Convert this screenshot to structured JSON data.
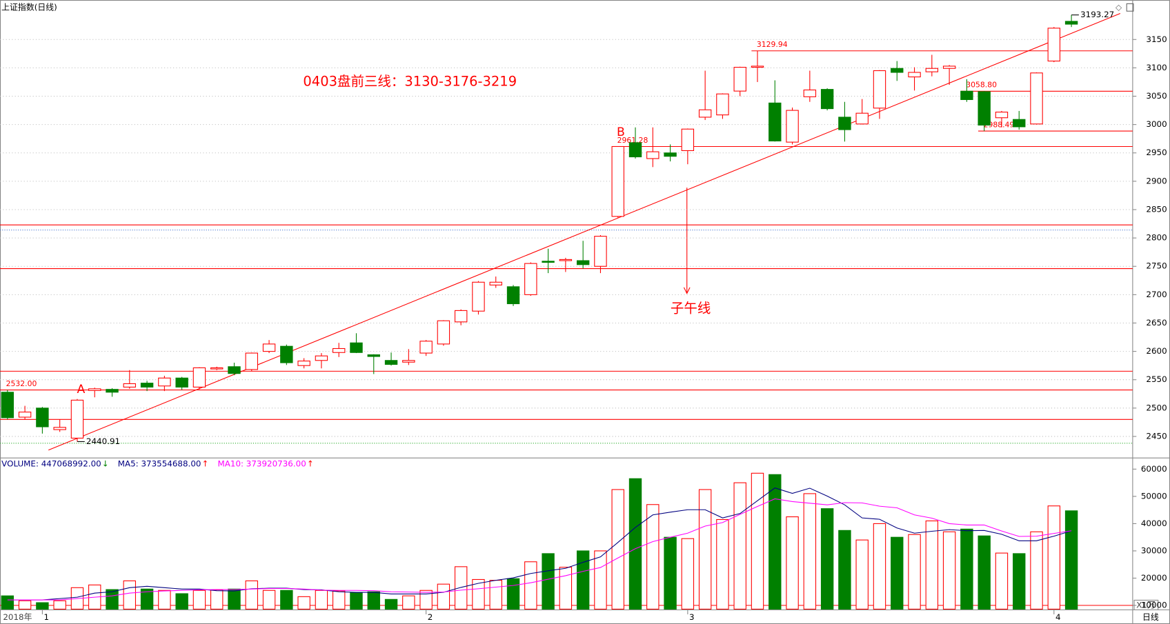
{
  "title": "上证指数(日线)",
  "chart_data": [
    {
      "type": "candlestick",
      "categories": [
        null,
        null,
        "1",
        null,
        null,
        null,
        null,
        null,
        null,
        null,
        null,
        null,
        null,
        null,
        null,
        null,
        null,
        null,
        null,
        null,
        null,
        null,
        null,
        null,
        "2",
        null,
        null,
        null,
        null,
        null,
        null,
        null,
        null,
        null,
        null,
        null,
        null,
        null,
        null,
        "3",
        null,
        null,
        null,
        null,
        null,
        null,
        null,
        null,
        null,
        null,
        null,
        null,
        null,
        null,
        null,
        null,
        null,
        null,
        null,
        null,
        "4",
        null
      ],
      "year_label": "2018年",
      "corner_label": "日线",
      "open": [
        2528,
        2484,
        2500,
        2462,
        2447,
        2531,
        2533,
        2537,
        2544,
        2539,
        2553,
        2537,
        2569,
        2573,
        2568,
        2600,
        2609,
        2575,
        2584,
        2598,
        2615,
        2594,
        2584,
        2581,
        2597,
        2613,
        2652,
        2671,
        2717,
        2714,
        2700,
        2759,
        2760,
        2760,
        2750,
        2838,
        2968,
        2940,
        2950,
        2954,
        3013,
        3017,
        3059,
        3101,
        3038,
        2969,
        3049,
        3062,
        3013,
        3001,
        3029,
        3099,
        3084,
        3093,
        3099,
        3058.8,
        3058,
        3012,
        3009,
        3001,
        3112,
        3182
      ],
      "high": [
        2532,
        2504,
        2502,
        2480,
        2516,
        2536,
        2535,
        2567,
        2548,
        2557,
        2555,
        2572,
        2573,
        2580,
        2598,
        2620,
        2612,
        2588,
        2597,
        2615,
        2632,
        2595,
        2598,
        2604,
        2620,
        2655,
        2674,
        2724,
        2732,
        2717,
        2757,
        2781,
        2765,
        2795,
        2805,
        2961.28,
        2995,
        2995,
        2965,
        2993,
        3095,
        3055,
        3102,
        3129.94,
        3078,
        3030,
        3095,
        3064,
        3040,
        3045,
        3096,
        3112,
        3101,
        3123,
        3105,
        3080,
        3059,
        3024,
        3024,
        3092,
        3172,
        3193.27
      ],
      "low": [
        2480,
        2480,
        2455,
        2458,
        2440.91,
        2519,
        2520,
        2534,
        2530,
        2530,
        2532,
        2533,
        2567,
        2558,
        2565,
        2597,
        2576,
        2570,
        2570,
        2590,
        2597,
        2560,
        2575,
        2576,
        2592,
        2610,
        2646,
        2665,
        2712,
        2680,
        2698,
        2738,
        2740,
        2746,
        2738,
        2836,
        2940,
        2925,
        2935,
        2930,
        3008,
        3010,
        3050,
        3075,
        2970,
        2965,
        3040,
        3025,
        2970,
        3000,
        3010,
        3077,
        3060,
        3085,
        3070,
        3040,
        2988.49,
        2995,
        2991,
        3000,
        3110,
        3172
      ],
      "close": [
        2483,
        2493,
        2467,
        2466,
        2514,
        2534,
        2528,
        2543,
        2537,
        2553,
        2537,
        2571,
        2571,
        2561,
        2597,
        2613,
        2580,
        2583,
        2592,
        2605,
        2598,
        2591,
        2577,
        2584,
        2618,
        2654,
        2672,
        2722,
        2722,
        2684,
        2755,
        2757,
        2762,
        2753,
        2803,
        2961.28,
        2943,
        2952,
        2944,
        2992,
        3026,
        3054,
        3101,
        3103,
        2971,
        3025,
        3061,
        3028,
        2991,
        3020,
        3095,
        3092,
        3092,
        3099,
        3103,
        3044,
        2999,
        3022,
        2996,
        3091,
        3170,
        3177
      ],
      "up_color": "#ff0000",
      "down_color": "#008000",
      "ylim": [
        2416,
        3196
      ],
      "yticks": [
        2450,
        2500,
        2550,
        2600,
        2650,
        2700,
        2750,
        2800,
        2850,
        2900,
        2950,
        3000,
        3050,
        3100,
        3150
      ],
      "grid": true,
      "levels": [
        {
          "value": 3129.94,
          "label": "3129.94",
          "start": 43
        },
        {
          "value": 3058.8,
          "label": "3058.80",
          "start": 55
        },
        {
          "value": 2988.49,
          "label": "2988.49",
          "start": 56
        },
        {
          "value": 2961.28,
          "label": "2961.28",
          "start": 35
        },
        {
          "value": 2823,
          "start": 0
        },
        {
          "value": 2746,
          "start": 0
        },
        {
          "value": 2565,
          "start": 0
        },
        {
          "value": 2532,
          "label": "2532.00",
          "start": 0
        },
        {
          "value": 2480,
          "start": 0
        }
      ],
      "dotted_levels": [
        {
          "value": 2814,
          "color": "#3366cc"
        },
        {
          "value": 2438,
          "color": "#22aa22"
        }
      ],
      "point_labels": [
        {
          "value": 2440.91,
          "label": "2440.91",
          "index": 4
        },
        {
          "value": 3193.27,
          "label": "3193.27",
          "index": 61
        }
      ],
      "trendline": {
        "x": [
          2.35,
          63.8
        ],
        "y": [
          2426,
          3196
        ]
      },
      "annotations": {
        "plan": "0403盘前三线：3130-3176-3219",
        "a": "A",
        "b": "B",
        "meridian": "子午线"
      }
    },
    {
      "type": "volume",
      "values": [
        13500,
        11700,
        11000,
        11700,
        16500,
        17500,
        15800,
        19000,
        16000,
        15500,
        14300,
        15500,
        15700,
        16000,
        19000,
        15500,
        15500,
        13200,
        15500,
        15300,
        14800,
        15000,
        12200,
        13500,
        15500,
        17800,
        24200,
        19500,
        19200,
        19800,
        26000,
        29000,
        24000,
        30000,
        30000,
        52500,
        56500,
        47000,
        35000,
        34500,
        52500,
        41500,
        55000,
        58500,
        58000,
        42500,
        51000,
        45500,
        37500,
        34000,
        40000,
        35000,
        36000,
        41000,
        37000,
        38000,
        35500,
        29200,
        29000,
        37000,
        46500,
        44707
      ],
      "series": [
        {
          "color": "#000080",
          "values": [
            12000,
            12000,
            12000,
            12500,
            13000,
            14500,
            15000,
            16500,
            17000,
            16500,
            16000,
            16000,
            15400,
            15300,
            16100,
            16300,
            16300,
            15800,
            15700,
            15000,
            14800,
            14800,
            14200,
            14200,
            14200,
            14800,
            16600,
            18100,
            19200,
            20100,
            21700,
            22700,
            23600,
            25800,
            27800,
            33100,
            38600,
            43200,
            44200,
            45100,
            45100,
            42100,
            43700,
            48400,
            53100,
            51100,
            53000,
            50100,
            46900,
            42100,
            41600,
            38400,
            36500,
            37200,
            37800,
            37400,
            37500,
            36100,
            33700,
            33700,
            35400,
            37355
          ]
        },
        {
          "color": "#ff00ff",
          "values": [
            12000,
            12000,
            12000,
            12000,
            12500,
            13000,
            13500,
            14500,
            15000,
            15300,
            15500,
            15700,
            15800,
            15800,
            16000,
            16200,
            16200,
            16000,
            15600,
            15500,
            15500,
            15400,
            15000,
            14900,
            14800,
            14900,
            15600,
            16100,
            16700,
            17300,
            18300,
            19600,
            20900,
            22500,
            23900,
            27400,
            30800,
            33400,
            35000,
            36500,
            39100,
            40400,
            43400,
            46300,
            49100,
            48100,
            47500,
            46900,
            47700,
            47600,
            46400,
            45800,
            43200,
            42000,
            40000,
            39500,
            39500,
            37300,
            35300,
            35400,
            36400,
            37392
          ]
        }
      ],
      "indicators": [
        {
          "label": "VOLUME: 447068992.00",
          "arrow": "↓",
          "color": "#000080",
          "arrow_color": "#008000"
        },
        {
          "label": "MA5: 373554688.00",
          "arrow": "↑",
          "color": "#000080",
          "arrow_color": "#ff0000"
        },
        {
          "label": "MA10: 373920736.00",
          "arrow": "↑",
          "color": "#ff00ff",
          "arrow_color": "#ff0000"
        }
      ],
      "unit_label": "X1万",
      "ylim": [
        8634,
        62186
      ],
      "yticks": [
        10000,
        20000,
        30000,
        40000,
        50000,
        60000
      ],
      "levels": [
        {
          "value": 10000,
          "start": 0
        }
      ]
    }
  ]
}
